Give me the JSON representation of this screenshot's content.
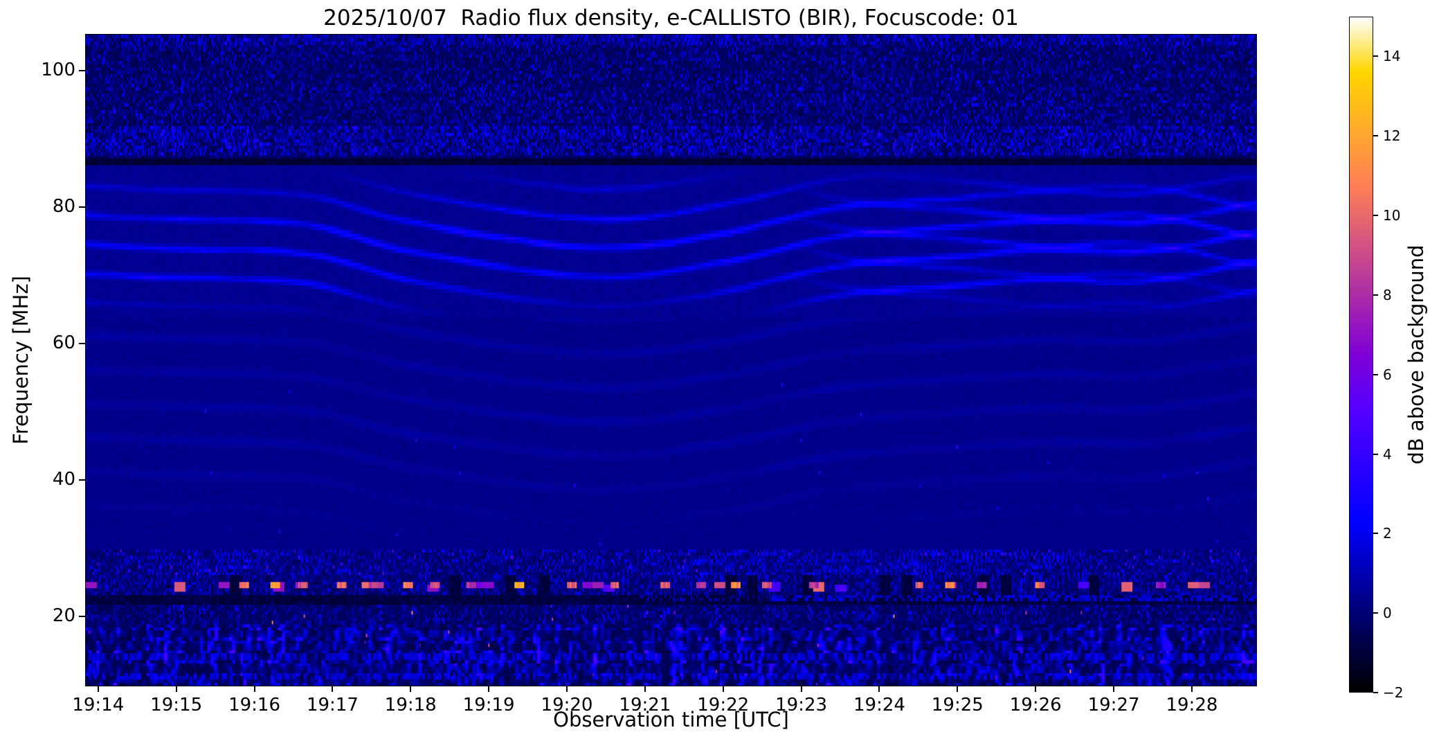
{
  "colors": {
    "background": "#ffffff",
    "text": "#000000",
    "axis": "#000000"
  },
  "chart_data": {
    "type": "heatmap",
    "title": "2025/10/07  Radio flux density, e-CALLISTO (BIR), Focuscode: 01",
    "xlabel": "Observation time [UTC]",
    "ylabel": "Frequency [MHz]",
    "colorbar_label": "dB above background",
    "colormap": "gnuplot2",
    "grid": false,
    "x_ticks": [
      "19:14",
      "19:15",
      "19:16",
      "19:17",
      "19:18",
      "19:19",
      "19:20",
      "19:21",
      "19:22",
      "19:23",
      "19:24",
      "19:25",
      "19:26",
      "19:27",
      "19:28"
    ],
    "x_start": "19:13:50",
    "x_end": "19:28:50",
    "y_ticks": [
      20,
      40,
      60,
      80,
      100
    ],
    "y_range_mhz": [
      9.7,
      105.4
    ],
    "colorbar_ticks": [
      -2,
      0,
      2,
      4,
      6,
      8,
      10,
      12,
      14
    ],
    "colorbar_range_db": [
      -2,
      15
    ],
    "bands": [
      {
        "name": "fm-broadcast-interference",
        "f_min": 87,
        "f_max": 105.4,
        "character": "dense fine speckled interference, blue specks and black gaps with vertical striations; brighter lanes near 88-91 MHz and at the very top",
        "db_range": [
          -1,
          3
        ]
      },
      {
        "name": "quiet-gap-line",
        "f_min": 86.2,
        "f_max": 87,
        "character": "dark horizontal gap line across full duration",
        "db_range": [
          -2,
          -0.8
        ]
      },
      {
        "name": "ionospheric-fringes",
        "f_min": 64,
        "f_max": 86,
        "character": "drifting diagonal fringe stripes spaced ~4 MHz, descending then rising, chevron and X-shaped crossings after 19:24",
        "db_range": [
          0,
          3.5
        ]
      },
      {
        "name": "quiet-band",
        "f_min": 30,
        "f_max": 64,
        "character": "dark blue background with faint diagonal ripples and sparse point specks near 50 MHz",
        "db_range": [
          0,
          1
        ]
      },
      {
        "name": "hf-speckle",
        "f_min": 26,
        "f_max": 30,
        "character": "patchy blue speckle, sparser at far left, denser 19:18-19:24",
        "db_range": [
          -0.5,
          3
        ]
      },
      {
        "name": "am-dash-band",
        "f_min": 23.3,
        "f_max": 26,
        "character": "bright intermittent orange/yellow horizontal dashes near 24.4 MHz over noisy blue/black background with black time gaps",
        "db_range": [
          -1.5,
          14
        ]
      },
      {
        "name": "dark-guard-band",
        "f_min": 21.6,
        "f_max": 23.3,
        "character": "mostly black lane; fine dotted blue rows appear after about 19:23",
        "db_range": [
          -2,
          2
        ]
      },
      {
        "name": "20mhz-speckle",
        "f_min": 18.6,
        "f_max": 21.6,
        "character": "blue speckle rows with sparse hot pink/orange points",
        "db_range": [
          -1,
          11
        ]
      },
      {
        "name": "bottom-noise",
        "f_min": 9.7,
        "f_max": 18.6,
        "character": "dense blotchy broadband noise, blue blobs on black, vertical streaks, rare hot points",
        "db_range": [
          -2,
          10
        ]
      }
    ],
    "bright_dashes_24mhz": [
      {
        "min": 15.85,
        "db": 11
      },
      {
        "min": 16.25,
        "db": 12.5
      },
      {
        "min": 16.6,
        "db": 10
      },
      {
        "min": 17.1,
        "db": 11
      },
      {
        "min": 17.5,
        "db": 9.5
      },
      {
        "min": 17.95,
        "db": 12
      },
      {
        "min": 18.3,
        "db": 10
      },
      {
        "min": 18.75,
        "db": 9
      },
      {
        "min": 19.38,
        "db": 14
      },
      {
        "min": 20.05,
        "db": 11
      },
      {
        "min": 20.6,
        "db": 10.5
      },
      {
        "min": 21.25,
        "db": 11
      },
      {
        "min": 21.7,
        "db": 9.5
      },
      {
        "min": 22.15,
        "db": 12
      },
      {
        "min": 22.55,
        "db": 10
      },
      {
        "min": 23.15,
        "db": 9
      },
      {
        "min": 24.5,
        "db": 11
      },
      {
        "min": 24.9,
        "db": 12
      },
      {
        "min": 25.3,
        "db": 9
      },
      {
        "min": 26.05,
        "db": 11
      },
      {
        "min": 27.6,
        "db": 8
      }
    ]
  }
}
